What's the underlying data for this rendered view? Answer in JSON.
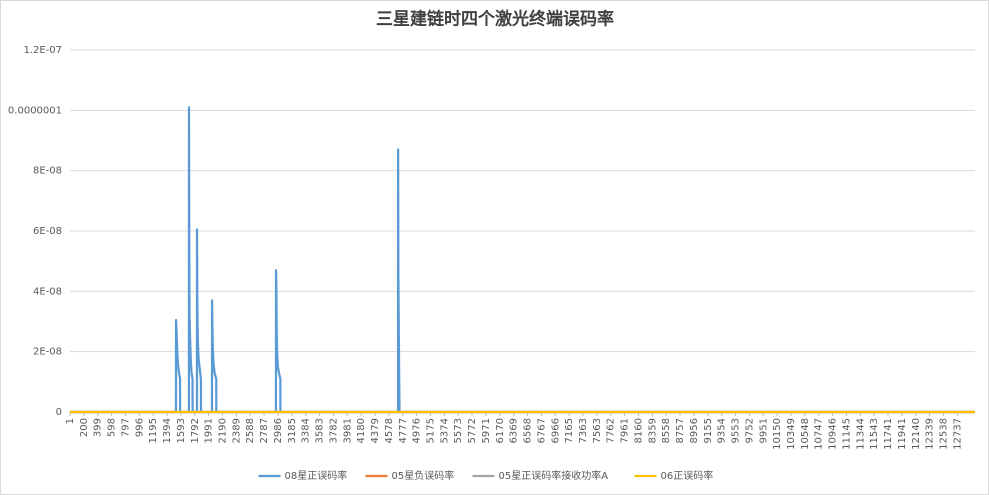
{
  "chart_data": {
    "type": "line",
    "title": "三星建链时四个激光终端误码率",
    "xlim": [
      1,
      12990
    ],
    "ylim": [
      0,
      1.2e-07
    ],
    "yticks": [
      0,
      {
        "value": 2e-08,
        "label": "2E-08"
      },
      {
        "value": 4e-08,
        "label": "4E-08"
      },
      {
        "value": 6e-08,
        "label": "6E-08"
      },
      {
        "value": 8e-08,
        "label": "8E-08"
      },
      {
        "value": 1e-07,
        "label": "0.0000001"
      },
      {
        "value": 1.2e-07,
        "label": "1.2E-07"
      }
    ],
    "xticks": [
      1,
      200,
      399,
      598,
      797,
      996,
      1195,
      1394,
      1593,
      1792,
      1991,
      2190,
      2389,
      2588,
      2787,
      2986,
      3185,
      3384,
      3583,
      3782,
      3981,
      4180,
      4379,
      4578,
      4777,
      4976,
      5175,
      5374,
      5573,
      5772,
      5971,
      6170,
      6369,
      6568,
      6767,
      6966,
      7165,
      7363,
      7563,
      7762,
      7961,
      8160,
      8359,
      8558,
      8757,
      8956,
      9155,
      9354,
      9553,
      9752,
      9951,
      10150,
      10349,
      10548,
      10747,
      10946,
      11145,
      11344,
      11543,
      11741,
      11941,
      12140,
      12339,
      12538,
      12737
    ],
    "grid": true,
    "legend": "bottom",
    "series": [
      {
        "name": "08星正误码率",
        "color": "#5b9bd5",
        "x": [
          1,
          1522,
          1523,
          1530,
          1540,
          1550,
          1565,
          1580,
          1581,
          1708,
          1709,
          1712,
          1716,
          1725,
          1735,
          1745,
          1760,
          1761,
          1823,
          1824,
          1828,
          1835,
          1845,
          1860,
          1880,
          1881,
          2039,
          2040,
          2045,
          2052,
          2062,
          2075,
          2100,
          2101,
          2957,
          2958,
          2962,
          2968,
          2975,
          2985,
          3000,
          3020,
          3021,
          4709,
          4710,
          4714,
          4720,
          4730,
          12990
        ],
        "values": [
          0,
          0,
          3.05e-08,
          2.7e-08,
          2e-08,
          1.6e-08,
          1.3e-08,
          1.1e-08,
          0,
          0,
          1.01e-07,
          6e-08,
          3.3e-08,
          2.4e-08,
          1.7e-08,
          1.3e-08,
          1.1e-08,
          0,
          0,
          6.05e-08,
          3.7e-08,
          2.4e-08,
          1.8e-08,
          1.5e-08,
          1.1e-08,
          0,
          0,
          3.7e-08,
          2.8e-08,
          2e-08,
          1.6e-08,
          1.3e-08,
          1.1e-08,
          0,
          0,
          4.7e-08,
          4.3e-08,
          2.6e-08,
          1.9e-08,
          1.5e-08,
          1.3e-08,
          1.1e-08,
          0,
          0,
          8.7e-08,
          4.5e-08,
          2.7e-08,
          0,
          0
        ]
      },
      {
        "name": "05星负误码率",
        "color": "#ed7d31",
        "x": [
          1,
          12990
        ],
        "values": [
          0,
          0
        ]
      },
      {
        "name": "05星正误码率接收功率A",
        "color": "#a5a5a5",
        "x": [
          1,
          12990
        ],
        "values": [
          0,
          0
        ]
      },
      {
        "name": "06正误码率",
        "color": "#ffc000",
        "x": [
          1,
          12990
        ],
        "values": [
          0,
          0
        ]
      }
    ]
  }
}
